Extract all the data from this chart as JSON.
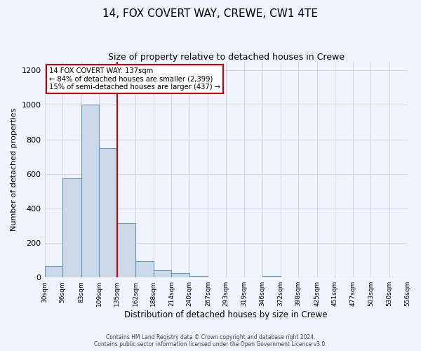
{
  "title": "14, FOX COVERT WAY, CREWE, CW1 4TE",
  "subtitle": "Size of property relative to detached houses in Crewe",
  "xlabel": "Distribution of detached houses by size in Crewe",
  "ylabel": "Number of detached properties",
  "bar_edges": [
    30,
    56,
    83,
    109,
    135,
    162,
    188,
    214,
    240,
    267,
    293,
    319,
    346,
    372,
    398,
    425,
    451,
    477,
    503,
    530,
    556
  ],
  "bar_heights": [
    65,
    575,
    1000,
    750,
    315,
    95,
    40,
    25,
    10,
    0,
    0,
    0,
    10,
    0,
    0,
    0,
    0,
    0,
    0,
    0
  ],
  "bar_color": "#ccd9e8",
  "bar_edge_color": "#6699bb",
  "vline_x": 135,
  "vline_color": "#cc0000",
  "annotation_box_edgecolor": "#cc0000",
  "annotation_lines": [
    "14 FOX COVERT WAY: 137sqm",
    "← 84% of detached houses are smaller (2,399)",
    "15% of semi-detached houses are larger (437) →"
  ],
  "ylim": [
    0,
    1250
  ],
  "yticks": [
    0,
    200,
    400,
    600,
    800,
    1000,
    1200
  ],
  "footer_line1": "Contains HM Land Registry data © Crown copyright and database right 2024.",
  "footer_line2": "Contains public sector information licensed under the Open Government Licence v3.0.",
  "background_color": "#f0f4ff",
  "grid_color": "#c8d0e0"
}
